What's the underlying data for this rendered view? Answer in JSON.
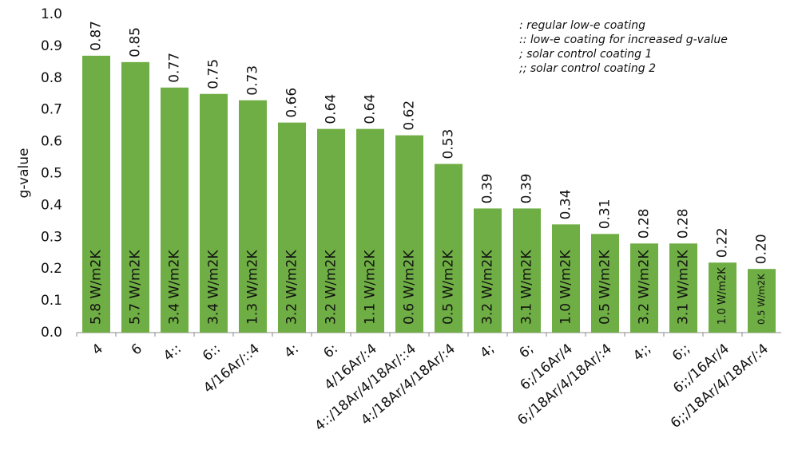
{
  "chart_data": {
    "type": "bar",
    "y_label": "g-value",
    "categories": [
      "4",
      "6",
      "4::",
      "6::",
      "4/16Ar/::4",
      "4:",
      "6:",
      "4/16Ar/:4",
      "4::/18Ar/4/18Ar/::4",
      "4:/18Ar/4/18Ar/:4",
      "4;",
      "6;",
      "6;/16Ar/4",
      "6;/18Ar/4/18Ar/:4",
      "4;;",
      "6;;",
      "6;;/16Ar/4",
      "6;;/18Ar/4/18Ar/:4"
    ],
    "values": [
      0.87,
      0.85,
      0.77,
      0.75,
      0.73,
      0.66,
      0.64,
      0.64,
      0.62,
      0.53,
      0.39,
      0.39,
      0.34,
      0.31,
      0.28,
      0.28,
      0.22,
      0.2
    ],
    "value_labels": [
      "0.87",
      "0.85",
      "0.77",
      "0.75",
      "0.73",
      "0.66",
      "0.64",
      "0.64",
      "0.62",
      "0.53",
      "0.39",
      "0.39",
      "0.34",
      "0.31",
      "0.28",
      "0.28",
      "0.22",
      "0.20"
    ],
    "bar_labels": [
      "5.8 W/m2K",
      "5.7 W/m2K",
      "3.4 W/m2K",
      "3.4 W/m2K",
      "1.3 W/m2K",
      "3.2 W/m2K",
      "3.2 W/m2K",
      "1.1 W/m2K",
      "0.6 W/m2K",
      "0.5 W/m2K",
      "3.2 W/m2K",
      "3.1 W/m2K",
      "1.0 W/m2K",
      "0.5 W/m2K",
      "3.2 W/m2K",
      "3.1 W/m2K",
      "1.0 W/m2K",
      "0.5 W/m2K"
    ],
    "color": "#6fae44",
    "ylim": [
      0,
      1
    ],
    "yticks": [
      {
        "value": 0,
        "label": "0.0"
      },
      0.1,
      0.2,
      0.3,
      0.4,
      0.5,
      0.6,
      0.7,
      0.8,
      0.9,
      {
        "value": 1,
        "label": "1.0"
      }
    ],
    "annotations": [
      ": regular low-e coating",
      ":: low-e coating for increased g-value",
      "; solar control coating 1",
      ";; solar control coating 2"
    ]
  }
}
